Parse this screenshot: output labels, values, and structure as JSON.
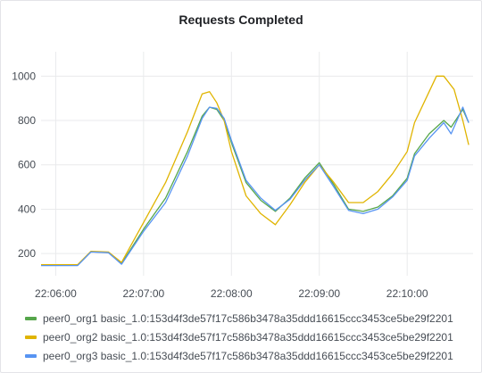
{
  "panel": {
    "title": "Requests Completed"
  },
  "colors": {
    "series": [
      "#56a64b",
      "#e0b400",
      "#5794f2"
    ],
    "grid": "#e9eaec"
  },
  "chart_data": {
    "type": "line",
    "title": "Requests Completed",
    "xlabel": "",
    "ylabel": "",
    "x_unit": "time HH:MM:SS",
    "x_ticks": [
      "22:06:00",
      "22:07:00",
      "22:08:00",
      "22:09:00",
      "22:10:00"
    ],
    "y_ticks": [
      200,
      400,
      600,
      800,
      1000
    ],
    "xlim": [
      "22:05:50",
      "22:10:45"
    ],
    "ylim": [
      100,
      1110
    ],
    "grid": true,
    "legend_position": "bottom",
    "series": [
      {
        "name": "peer0_org1 basic_1.0:153d4f3de57f17c586b3478a35ddd16615ccc3453ce5be29f2201",
        "points": [
          [
            "22:05:50",
            148
          ],
          [
            "22:06:15",
            148
          ],
          [
            "22:06:24",
            208
          ],
          [
            "22:06:36",
            205
          ],
          [
            "22:06:45",
            155
          ],
          [
            "22:07:00",
            310
          ],
          [
            "22:07:15",
            450
          ],
          [
            "22:07:30",
            660
          ],
          [
            "22:07:40",
            820
          ],
          [
            "22:07:45",
            860
          ],
          [
            "22:07:50",
            850
          ],
          [
            "22:07:55",
            800
          ],
          [
            "22:08:00",
            700
          ],
          [
            "22:08:10",
            520
          ],
          [
            "22:08:20",
            440
          ],
          [
            "22:08:30",
            390
          ],
          [
            "22:08:40",
            450
          ],
          [
            "22:08:50",
            540
          ],
          [
            "22:09:00",
            610
          ],
          [
            "22:09:10",
            510
          ],
          [
            "22:09:20",
            400
          ],
          [
            "22:09:30",
            390
          ],
          [
            "22:09:40",
            410
          ],
          [
            "22:09:50",
            460
          ],
          [
            "22:10:00",
            540
          ],
          [
            "22:10:05",
            650
          ],
          [
            "22:10:15",
            740
          ],
          [
            "22:10:25",
            800
          ],
          [
            "22:10:30",
            770
          ],
          [
            "22:10:38",
            850
          ],
          [
            "22:10:42",
            790
          ]
        ]
      },
      {
        "name": "peer0_org2 basic_1.0:153d4f3de57f17c586b3478a35ddd16615ccc3453ce5be29f2201",
        "points": [
          [
            "22:05:50",
            150
          ],
          [
            "22:06:15",
            150
          ],
          [
            "22:06:24",
            210
          ],
          [
            "22:06:36",
            207
          ],
          [
            "22:06:45",
            160
          ],
          [
            "22:07:00",
            340
          ],
          [
            "22:07:15",
            520
          ],
          [
            "22:07:30",
            750
          ],
          [
            "22:07:40",
            920
          ],
          [
            "22:07:45",
            930
          ],
          [
            "22:07:50",
            880
          ],
          [
            "22:07:55",
            800
          ],
          [
            "22:08:00",
            660
          ],
          [
            "22:08:10",
            460
          ],
          [
            "22:08:20",
            380
          ],
          [
            "22:08:30",
            330
          ],
          [
            "22:08:40",
            420
          ],
          [
            "22:08:50",
            520
          ],
          [
            "22:09:00",
            600
          ],
          [
            "22:09:10",
            520
          ],
          [
            "22:09:20",
            430
          ],
          [
            "22:09:30",
            430
          ],
          [
            "22:09:40",
            480
          ],
          [
            "22:09:50",
            560
          ],
          [
            "22:10:00",
            660
          ],
          [
            "22:10:05",
            790
          ],
          [
            "22:10:15",
            930
          ],
          [
            "22:10:20",
            1000
          ],
          [
            "22:10:25",
            1000
          ],
          [
            "22:10:32",
            940
          ],
          [
            "22:10:38",
            800
          ],
          [
            "22:10:42",
            690
          ]
        ]
      },
      {
        "name": "peer0_org3 basic_1.0:153d4f3de57f17c586b3478a35ddd16615ccc3453ce5be29f2201",
        "points": [
          [
            "22:05:50",
            146
          ],
          [
            "22:06:15",
            146
          ],
          [
            "22:06:24",
            207
          ],
          [
            "22:06:36",
            204
          ],
          [
            "22:06:45",
            152
          ],
          [
            "22:07:00",
            300
          ],
          [
            "22:07:15",
            430
          ],
          [
            "22:07:30",
            640
          ],
          [
            "22:07:40",
            810
          ],
          [
            "22:07:45",
            860
          ],
          [
            "22:07:50",
            855
          ],
          [
            "22:07:55",
            810
          ],
          [
            "22:08:00",
            710
          ],
          [
            "22:08:10",
            530
          ],
          [
            "22:08:20",
            450
          ],
          [
            "22:08:30",
            395
          ],
          [
            "22:08:40",
            445
          ],
          [
            "22:08:50",
            530
          ],
          [
            "22:09:00",
            600
          ],
          [
            "22:09:10",
            500
          ],
          [
            "22:09:20",
            395
          ],
          [
            "22:09:30",
            380
          ],
          [
            "22:09:40",
            400
          ],
          [
            "22:09:50",
            455
          ],
          [
            "22:10:00",
            530
          ],
          [
            "22:10:05",
            640
          ],
          [
            "22:10:15",
            720
          ],
          [
            "22:10:25",
            790
          ],
          [
            "22:10:30",
            740
          ],
          [
            "22:10:38",
            860
          ],
          [
            "22:10:42",
            790
          ]
        ]
      }
    ]
  }
}
